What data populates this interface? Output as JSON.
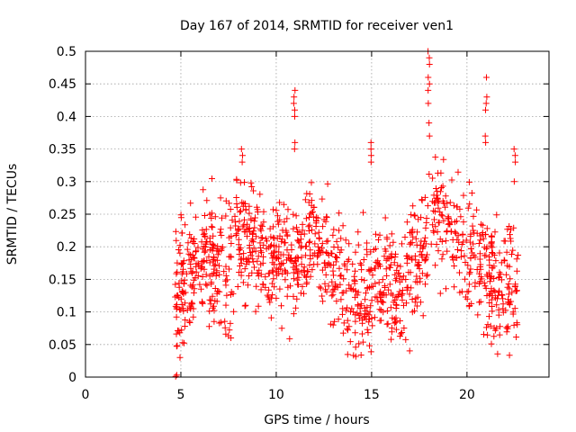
{
  "chart_data": {
    "type": "scatter",
    "title": "Day 167 of 2014, SRMTID for receiver ven1",
    "xlabel": "GPS time / hours",
    "ylabel": "SRMTID / TECUs",
    "xlim": [
      0,
      24.3
    ],
    "ylim": [
      0,
      0.5
    ],
    "x_ticks": [
      0,
      5,
      10,
      15,
      20
    ],
    "x_tick_labels": [
      "0",
      "5",
      "10",
      "15",
      "20"
    ],
    "y_ticks": [
      0,
      0.05,
      0.1,
      0.15,
      0.2,
      0.25,
      0.3,
      0.35,
      0.4,
      0.45,
      0.5
    ],
    "y_tick_labels": [
      "0",
      "0.05",
      "0.1",
      "0.15",
      "0.2",
      "0.25",
      "0.3",
      "0.35",
      "0.4",
      "0.45",
      "0.5"
    ],
    "grid": true,
    "marker": "+",
    "marker_color": "#ff0000",
    "trend": {
      "x": [
        4.8,
        5.5,
        6.5,
        7.3,
        8.0,
        8.8,
        9.5,
        10.3,
        11.0,
        11.8,
        12.5,
        13.2,
        13.9,
        14.6,
        15.3,
        16.0,
        16.5,
        17.2,
        17.9,
        18.4,
        18.8,
        19.5,
        20.2,
        20.9,
        21.5,
        22.0,
        22.5
      ],
      "y": [
        0.13,
        0.16,
        0.18,
        0.15,
        0.2,
        0.21,
        0.18,
        0.2,
        0.16,
        0.22,
        0.2,
        0.15,
        0.13,
        0.12,
        0.15,
        0.15,
        0.1,
        0.18,
        0.22,
        0.25,
        0.26,
        0.2,
        0.2,
        0.17,
        0.13,
        0.14,
        0.16
      ]
    },
    "noise": 0.045,
    "spikes": [
      {
        "x": 4.75,
        "y_values": [
          0.003,
          0.001
        ]
      },
      {
        "x": 10.95,
        "y_values": [
          0.44,
          0.43,
          0.42,
          0.41,
          0.4,
          0.36,
          0.35
        ]
      },
      {
        "x": 18.0,
        "y_values": [
          0.5,
          0.49,
          0.48,
          0.46,
          0.45,
          0.44,
          0.42,
          0.39,
          0.37
        ]
      },
      {
        "x": 21.0,
        "y_values": [
          0.46,
          0.43,
          0.42,
          0.41,
          0.37,
          0.36
        ]
      },
      {
        "x": 15.0,
        "y_values": [
          0.36,
          0.35,
          0.34,
          0.33
        ]
      },
      {
        "x": 8.2,
        "y_values": [
          0.35,
          0.34,
          0.33
        ]
      },
      {
        "x": 22.5,
        "y_values": [
          0.35,
          0.34,
          0.33,
          0.3
        ]
      }
    ],
    "points_per_hour": 70,
    "x_start": 4.7,
    "x_end": 22.7
  }
}
